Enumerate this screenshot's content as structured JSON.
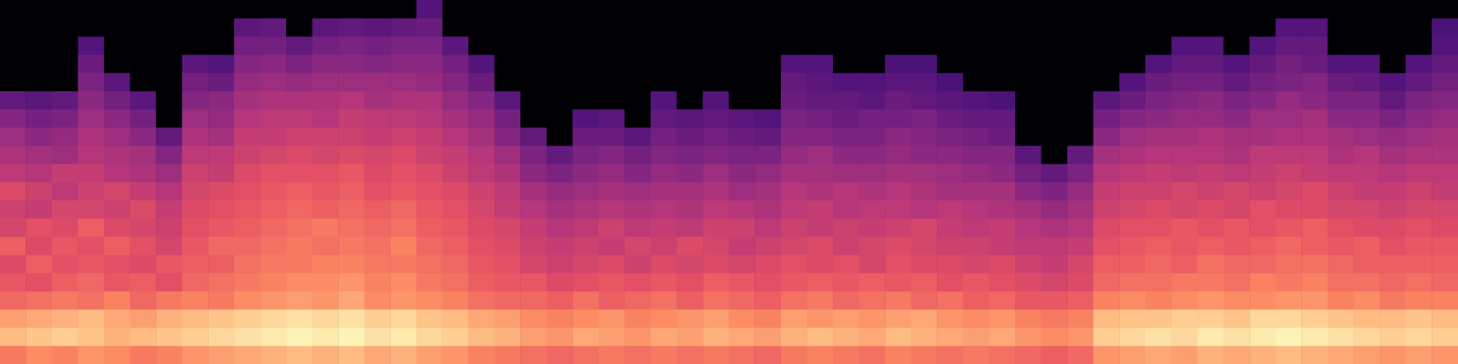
{
  "chart_data": {
    "type": "heatmap",
    "tick_labels": false,
    "zlim": [
      0,
      100
    ],
    "cells": [
      [
        72,
        86,
        80,
        68,
        64,
        60,
        66,
        58,
        56,
        60,
        52,
        48,
        44,
        38,
        30,
        0,
        0,
        0,
        0,
        0
      ],
      [
        76,
        88,
        82,
        70,
        62,
        66,
        60,
        62,
        54,
        56,
        50,
        46,
        40,
        34,
        28,
        0,
        0,
        0,
        0,
        0
      ],
      [
        74,
        90,
        84,
        72,
        66,
        62,
        64,
        60,
        58,
        52,
        54,
        44,
        42,
        36,
        30,
        0,
        0,
        0,
        0,
        0
      ],
      [
        78,
        88,
        86,
        70,
        68,
        64,
        62,
        66,
        58,
        56,
        54,
        50,
        48,
        44,
        40,
        36,
        32,
        26,
        0,
        0
      ],
      [
        76,
        84,
        82,
        74,
        64,
        62,
        66,
        60,
        56,
        58,
        50,
        48,
        44,
        40,
        34,
        28,
        0,
        0,
        0,
        0
      ],
      [
        72,
        86,
        80,
        68,
        66,
        60,
        62,
        58,
        60,
        54,
        48,
        46,
        40,
        34,
        28,
        0,
        0,
        0,
        0,
        0
      ],
      [
        74,
        88,
        84,
        72,
        62,
        64,
        58,
        56,
        54,
        50,
        44,
        38,
        30,
        0,
        0,
        0,
        0,
        0,
        0,
        0
      ],
      [
        78,
        90,
        86,
        74,
        68,
        66,
        64,
        62,
        60,
        58,
        56,
        52,
        48,
        44,
        38,
        34,
        28,
        0,
        0,
        0
      ],
      [
        80,
        92,
        88,
        72,
        70,
        66,
        68,
        64,
        62,
        60,
        54,
        52,
        46,
        42,
        40,
        32,
        26,
        0,
        0,
        0
      ],
      [
        82,
        94,
        90,
        76,
        72,
        70,
        68,
        66,
        64,
        62,
        60,
        56,
        54,
        50,
        46,
        42,
        38,
        34,
        28,
        0
      ],
      [
        84,
        96,
        92,
        78,
        74,
        72,
        70,
        68,
        66,
        64,
        62,
        58,
        54,
        52,
        48,
        44,
        40,
        34,
        30,
        0
      ],
      [
        86,
        98,
        94,
        80,
        76,
        72,
        72,
        70,
        68,
        66,
        62,
        60,
        56,
        52,
        48,
        42,
        36,
        30,
        0,
        0
      ],
      [
        84,
        96,
        92,
        78,
        76,
        74,
        70,
        72,
        66,
        64,
        62,
        58,
        56,
        50,
        48,
        44,
        40,
        34,
        28,
        0
      ],
      [
        86,
        98,
        94,
        82,
        78,
        74,
        72,
        70,
        68,
        66,
        64,
        60,
        56,
        54,
        50,
        44,
        40,
        36,
        30,
        0
      ],
      [
        82,
        94,
        90,
        76,
        74,
        72,
        70,
        68,
        66,
        62,
        60,
        58,
        54,
        52,
        46,
        44,
        38,
        34,
        28,
        0
      ],
      [
        84,
        96,
        92,
        78,
        76,
        72,
        74,
        70,
        68,
        64,
        62,
        60,
        56,
        52,
        48,
        44,
        40,
        36,
        30,
        0
      ],
      [
        80,
        92,
        88,
        76,
        72,
        70,
        68,
        66,
        64,
        62,
        60,
        56,
        54,
        50,
        48,
        42,
        40,
        36,
        32,
        26
      ],
      [
        78,
        90,
        86,
        74,
        70,
        68,
        66,
        64,
        62,
        60,
        56,
        54,
        50,
        46,
        42,
        38,
        34,
        28,
        0,
        0
      ],
      [
        74,
        86,
        82,
        70,
        66,
        64,
        62,
        60,
        58,
        56,
        52,
        50,
        46,
        42,
        38,
        32,
        26,
        0,
        0,
        0
      ],
      [
        72,
        84,
        80,
        68,
        64,
        62,
        60,
        58,
        54,
        52,
        48,
        44,
        38,
        34,
        28,
        0,
        0,
        0,
        0,
        0
      ],
      [
        70,
        80,
        76,
        68,
        64,
        58,
        56,
        54,
        50,
        46,
        40,
        36,
        30,
        0,
        0,
        0,
        0,
        0,
        0,
        0
      ],
      [
        68,
        78,
        74,
        66,
        60,
        56,
        54,
        50,
        46,
        42,
        36,
        30,
        0,
        0,
        0,
        0,
        0,
        0,
        0,
        0
      ],
      [
        70,
        82,
        76,
        70,
        62,
        58,
        56,
        52,
        48,
        44,
        40,
        36,
        32,
        26,
        0,
        0,
        0,
        0,
        0,
        0
      ],
      [
        72,
        80,
        78,
        66,
        64,
        60,
        54,
        56,
        50,
        46,
        42,
        38,
        32,
        28,
        0,
        0,
        0,
        0,
        0,
        0
      ],
      [
        70,
        78,
        74,
        68,
        62,
        56,
        58,
        52,
        48,
        44,
        38,
        34,
        28,
        0,
        0,
        0,
        0,
        0,
        0,
        0
      ],
      [
        72,
        82,
        76,
        70,
        64,
        60,
        56,
        54,
        50,
        46,
        42,
        38,
        34,
        30,
        26,
        0,
        0,
        0,
        0,
        0
      ],
      [
        70,
        80,
        78,
        66,
        62,
        58,
        60,
        52,
        48,
        46,
        40,
        36,
        32,
        28,
        0,
        0,
        0,
        0,
        0,
        0
      ],
      [
        72,
        84,
        80,
        70,
        66,
        60,
        58,
        56,
        52,
        48,
        44,
        38,
        34,
        30,
        26,
        0,
        0,
        0,
        0,
        0
      ],
      [
        70,
        82,
        76,
        68,
        64,
        58,
        54,
        56,
        50,
        44,
        40,
        36,
        32,
        28,
        0,
        0,
        0,
        0,
        0,
        0
      ],
      [
        68,
        80,
        74,
        66,
        62,
        60,
        56,
        52,
        48,
        46,
        42,
        36,
        30,
        26,
        0,
        0,
        0,
        0,
        0,
        0
      ],
      [
        72,
        84,
        80,
        70,
        64,
        62,
        58,
        56,
        52,
        50,
        46,
        42,
        38,
        36,
        32,
        30,
        26,
        0,
        0,
        0
      ],
      [
        74,
        86,
        78,
        72,
        66,
        60,
        60,
        54,
        54,
        48,
        46,
        44,
        38,
        34,
        30,
        28,
        26,
        0,
        0,
        0
      ],
      [
        72,
        84,
        80,
        68,
        64,
        62,
        56,
        56,
        50,
        50,
        44,
        40,
        36,
        32,
        30,
        26,
        0,
        0,
        0,
        0
      ],
      [
        70,
        82,
        78,
        70,
        66,
        58,
        58,
        54,
        52,
        48,
        44,
        40,
        36,
        34,
        28,
        26,
        0,
        0,
        0,
        0
      ],
      [
        74,
        86,
        80,
        72,
        64,
        62,
        60,
        56,
        52,
        50,
        46,
        42,
        40,
        34,
        32,
        28,
        24,
        0,
        0,
        0
      ],
      [
        72,
        84,
        82,
        68,
        66,
        60,
        58,
        58,
        50,
        48,
        46,
        40,
        38,
        36,
        30,
        28,
        24,
        0,
        0,
        0
      ],
      [
        70,
        82,
        78,
        70,
        62,
        60,
        56,
        54,
        52,
        46,
        44,
        40,
        36,
        32,
        28,
        24,
        0,
        0,
        0,
        0
      ],
      [
        72,
        80,
        76,
        66,
        64,
        58,
        56,
        52,
        50,
        46,
        42,
        38,
        34,
        30,
        26,
        0,
        0,
        0,
        0,
        0
      ],
      [
        70,
        82,
        78,
        68,
        62,
        60,
        54,
        54,
        48,
        46,
        40,
        38,
        32,
        30,
        24,
        0,
        0,
        0,
        0,
        0
      ],
      [
        68,
        78,
        74,
        64,
        60,
        56,
        52,
        50,
        46,
        40,
        34,
        28,
        0,
        0,
        0,
        0,
        0,
        0,
        0,
        0
      ],
      [
        66,
        76,
        72,
        64,
        58,
        54,
        52,
        48,
        42,
        36,
        30,
        0,
        0,
        0,
        0,
        0,
        0,
        0,
        0,
        0
      ],
      [
        68,
        78,
        74,
        66,
        60,
        58,
        54,
        50,
        46,
        42,
        36,
        30,
        0,
        0,
        0,
        0,
        0,
        0,
        0,
        0
      ],
      [
        78,
        90,
        86,
        74,
        68,
        66,
        62,
        60,
        56,
        54,
        50,
        46,
        40,
        34,
        28,
        0,
        0,
        0,
        0,
        0
      ],
      [
        80,
        92,
        88,
        76,
        70,
        66,
        64,
        62,
        58,
        56,
        52,
        48,
        44,
        38,
        32,
        26,
        0,
        0,
        0,
        0
      ],
      [
        82,
        94,
        88,
        74,
        70,
        68,
        66,
        62,
        60,
        56,
        54,
        50,
        46,
        40,
        36,
        32,
        26,
        0,
        0,
        0
      ],
      [
        80,
        92,
        90,
        76,
        72,
        66,
        64,
        64,
        58,
        58,
        52,
        50,
        46,
        42,
        38,
        34,
        30,
        26,
        0,
        0
      ],
      [
        84,
        96,
        90,
        78,
        72,
        70,
        66,
        62,
        60,
        56,
        54,
        50,
        48,
        42,
        40,
        34,
        30,
        26,
        0,
        0
      ],
      [
        82,
        94,
        88,
        76,
        70,
        68,
        64,
        64,
        58,
        58,
        52,
        48,
        46,
        40,
        36,
        30,
        26,
        0,
        0,
        0
      ],
      [
        84,
        96,
        92,
        76,
        74,
        68,
        66,
        62,
        62,
        56,
        54,
        52,
        46,
        44,
        38,
        34,
        30,
        26,
        0,
        0
      ],
      [
        86,
        98,
        92,
        78,
        72,
        70,
        68,
        64,
        60,
        58,
        56,
        52,
        48,
        44,
        42,
        36,
        34,
        30,
        26,
        0
      ],
      [
        84,
        96,
        90,
        78,
        74,
        70,
        66,
        66,
        60,
        60,
        54,
        52,
        48,
        46,
        40,
        38,
        32,
        30,
        26,
        0
      ],
      [
        82,
        94,
        88,
        74,
        70,
        68,
        64,
        62,
        58,
        56,
        52,
        48,
        46,
        40,
        36,
        32,
        26,
        0,
        0,
        0
      ],
      [
        80,
        92,
        86,
        76,
        70,
        66,
        66,
        60,
        58,
        54,
        52,
        50,
        44,
        40,
        36,
        30,
        26,
        0,
        0,
        0
      ],
      [
        78,
        90,
        86,
        72,
        68,
        66,
        62,
        60,
        56,
        54,
        50,
        46,
        42,
        36,
        30,
        26,
        0,
        0,
        0,
        0
      ],
      [
        80,
        92,
        88,
        74,
        70,
        66,
        64,
        62,
        58,
        56,
        52,
        48,
        44,
        40,
        36,
        30,
        26,
        0,
        0,
        0
      ],
      [
        78,
        90,
        86,
        74,
        68,
        66,
        64,
        60,
        58,
        54,
        52,
        48,
        46,
        42,
        38,
        34,
        30,
        26,
        24,
        0
      ]
    ]
  }
}
